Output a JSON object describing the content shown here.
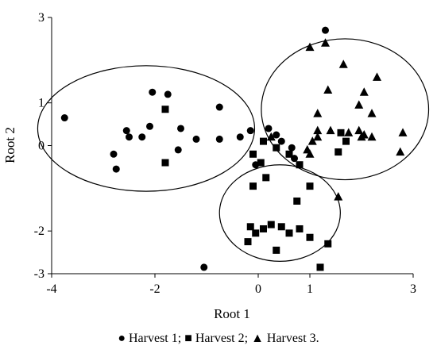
{
  "chart_data": {
    "type": "scatter",
    "xlabel": "Root 1",
    "ylabel": "Root 2",
    "xlim": [
      -4,
      3
    ],
    "ylim": [
      -3,
      3
    ],
    "x_ticks": [
      "-4",
      "-2",
      "0",
      "1",
      "3"
    ],
    "y_ticks": [
      "3",
      "1",
      "0",
      "-2",
      "-3"
    ],
    "grid": false,
    "marker_color": "#000000",
    "series": [
      {
        "name": "Harvest 1",
        "marker": "circle",
        "points": [
          [
            -3.75,
            0.65
          ],
          [
            -2.05,
            1.25
          ],
          [
            -1.75,
            1.2
          ],
          [
            -1.5,
            0.4
          ],
          [
            -2.1,
            0.45
          ],
          [
            -2.55,
            0.35
          ],
          [
            -2.25,
            0.2
          ],
          [
            -2.5,
            0.2
          ],
          [
            -2.8,
            -0.2
          ],
          [
            -2.75,
            -0.55
          ],
          [
            -1.55,
            -0.1
          ],
          [
            -1.2,
            0.15
          ],
          [
            -0.75,
            0.9
          ],
          [
            -0.75,
            0.15
          ],
          [
            -0.35,
            0.2
          ],
          [
            -0.15,
            0.35
          ],
          [
            0.2,
            0.4
          ],
          [
            0.35,
            0.25
          ],
          [
            0.45,
            0.1
          ],
          [
            0.65,
            -0.05
          ],
          [
            0.7,
            -0.3
          ],
          [
            -0.05,
            -0.45
          ],
          [
            1.3,
            2.7
          ],
          [
            -1.05,
            -2.85
          ]
        ]
      },
      {
        "name": "Harvest 2",
        "marker": "square",
        "points": [
          [
            -1.8,
            0.85
          ],
          [
            -1.8,
            -0.4
          ],
          [
            -0.1,
            -0.2
          ],
          [
            0.1,
            0.1
          ],
          [
            0.6,
            -0.2
          ],
          [
            0.8,
            -0.45
          ],
          [
            0.35,
            -0.05
          ],
          [
            0.05,
            -0.4
          ],
          [
            0.15,
            -0.75
          ],
          [
            -0.1,
            -0.95
          ],
          [
            -0.15,
            -1.9
          ],
          [
            0.1,
            -1.95
          ],
          [
            0.25,
            -1.85
          ],
          [
            -0.05,
            -2.05
          ],
          [
            -0.2,
            -2.25
          ],
          [
            0.45,
            -1.9
          ],
          [
            0.6,
            -2.05
          ],
          [
            0.8,
            -1.95
          ],
          [
            1.0,
            -2.15
          ],
          [
            1.35,
            -2.3
          ],
          [
            1.0,
            -0.95
          ],
          [
            1.55,
            -0.15
          ],
          [
            1.6,
            0.3
          ],
          [
            1.7,
            0.1
          ],
          [
            0.75,
            -1.3
          ],
          [
            0.35,
            -2.45
          ],
          [
            1.2,
            -2.85
          ]
        ]
      },
      {
        "name": "Harvest 3",
        "marker": "triangle",
        "points": [
          [
            1.0,
            2.3
          ],
          [
            1.3,
            2.4
          ],
          [
            1.65,
            1.9
          ],
          [
            2.3,
            1.6
          ],
          [
            1.35,
            1.3
          ],
          [
            2.05,
            1.25
          ],
          [
            1.95,
            0.95
          ],
          [
            2.2,
            0.75
          ],
          [
            1.15,
            0.75
          ],
          [
            1.75,
            0.3
          ],
          [
            2.05,
            0.25
          ],
          [
            1.4,
            0.35
          ],
          [
            1.15,
            0.35
          ],
          [
            1.95,
            0.35
          ],
          [
            2.0,
            0.2
          ],
          [
            2.2,
            0.2
          ],
          [
            2.8,
            0.3
          ],
          [
            1.05,
            0.1
          ],
          [
            0.25,
            0.2
          ],
          [
            0.95,
            -0.1
          ],
          [
            1.15,
            0.2
          ],
          [
            2.75,
            -0.15
          ],
          [
            1.55,
            -1.2
          ],
          [
            1.0,
            -0.2
          ]
        ]
      }
    ],
    "clusters": [
      {
        "cx": -2.17,
        "cy": 0.4,
        "rx": 2.1,
        "ry": 1.47
      },
      {
        "cx": 1.68,
        "cy": 0.85,
        "rx": 1.62,
        "ry": 1.65
      },
      {
        "cx": 0.42,
        "cy": -1.58,
        "rx": 1.17,
        "ry": 1.13
      }
    ]
  },
  "legend_text": "● Harvest 1; ■ Harvest 2; ▲ Harvest 3."
}
